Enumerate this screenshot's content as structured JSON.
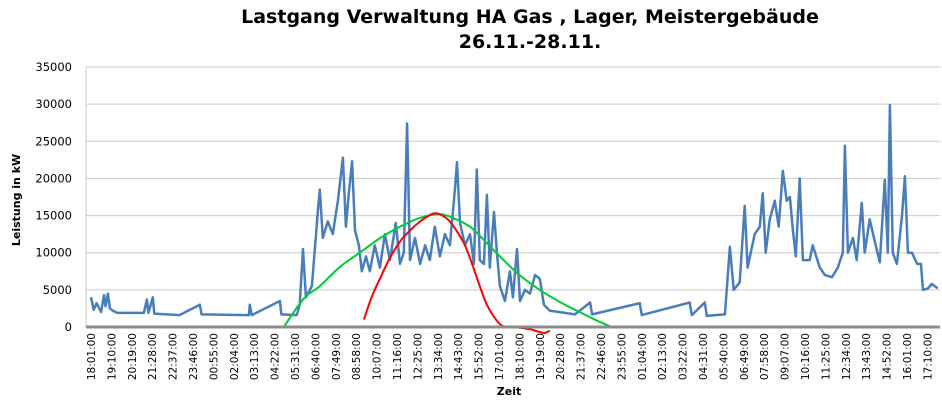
{
  "chart_data": {
    "type": "line",
    "title": "Lastgang Verwaltung HA Gas , Lager, Meistergebäude",
    "subtitle": "26.11.-28.11.",
    "xlabel": "Zeit",
    "ylabel": "Leistung in kW",
    "ylim": [
      0,
      35000
    ],
    "yticks": [
      0,
      5000,
      10000,
      15000,
      20000,
      25000,
      30000,
      35000
    ],
    "grid": true,
    "legend": "none",
    "xtick_labels": [
      "18:01:00",
      "19:10:00",
      "20:19:00",
      "21:28:00",
      "22:37:00",
      "23:46:00",
      "00:55:00",
      "02:04:00",
      "03:13:00",
      "04:22:00",
      "05:31:00",
      "06:40:00",
      "07:49:00",
      "08:58:00",
      "10:07:00",
      "11:16:00",
      "12:25:00",
      "13:34:00",
      "14:43:00",
      "15:52:00",
      "17:01:00",
      "18:10:00",
      "19:19:00",
      "20:28:00",
      "21:37:00",
      "22:46:00",
      "23:55:00",
      "01:04:00",
      "02:13:00",
      "03:22:00",
      "04:31:00",
      "05:40:00",
      "06:49:00",
      "07:58:00",
      "09:07:00",
      "10:16:00",
      "11:25:00",
      "12:34:00",
      "13:43:00",
      "14:52:00",
      "16:01:00",
      "17:10:00"
    ],
    "series": [
      {
        "color": "#4a7ebb",
        "points": [
          [
            "26.11. 18:01",
            4000
          ],
          [
            "26.11. 18:10",
            2300
          ],
          [
            "26.11. 18:20",
            3200
          ],
          [
            "26.11. 18:35",
            2000
          ],
          [
            "26.11. 18:45",
            4300
          ],
          [
            "26.11. 18:50",
            2800
          ],
          [
            "26.11. 18:58",
            4500
          ],
          [
            "26.11. 19:05",
            2500
          ],
          [
            "26.11. 19:15",
            2200
          ],
          [
            "26.11. 19:30",
            1900
          ],
          [
            "26.11. 21:00",
            1900
          ],
          [
            "26.11. 21:10",
            3700
          ],
          [
            "26.11. 21:15",
            1900
          ],
          [
            "26.11. 21:30",
            4000
          ],
          [
            "26.11. 21:35",
            1800
          ],
          [
            "26.11. 23:00",
            1600
          ],
          [
            "27.11. 00:09",
            3000
          ],
          [
            "27.11. 00:15",
            1700
          ],
          [
            "27.11. 02:55",
            1600
          ],
          [
            "27.11. 02:58",
            3000
          ],
          [
            "27.11. 03:05",
            1600
          ],
          [
            "27.11. 04:40",
            3500
          ],
          [
            "27.11. 04:45",
            1700
          ],
          [
            "27.11. 05:37",
            1600
          ],
          [
            "27.11. 05:47",
            3000
          ],
          [
            "27.11. 05:58",
            10500
          ],
          [
            "27.11. 06:08",
            4000
          ],
          [
            "27.11. 06:28",
            5500
          ],
          [
            "27.11. 06:49",
            16000
          ],
          [
            "27.11. 06:55",
            18500
          ],
          [
            "27.11. 07:05",
            12000
          ],
          [
            "27.11. 07:22",
            14200
          ],
          [
            "27.11. 07:39",
            12500
          ],
          [
            "27.11. 07:56",
            17000
          ],
          [
            "27.11. 08:13",
            22800
          ],
          [
            "27.11. 08:23",
            13500
          ],
          [
            "27.11. 08:33",
            18000
          ],
          [
            "27.11. 08:44",
            22300
          ],
          [
            "27.11. 08:54",
            13000
          ],
          [
            "27.11. 09:07",
            11000
          ],
          [
            "27.11. 09:17",
            7500
          ],
          [
            "27.11. 09:31",
            9500
          ],
          [
            "27.11. 09:44",
            7500
          ],
          [
            "27.11. 10:01",
            11000
          ],
          [
            "27.11. 10:18",
            8000
          ],
          [
            "27.11. 10:35",
            12500
          ],
          [
            "27.11. 10:52",
            9000
          ],
          [
            "27.11. 11:12",
            14000
          ],
          [
            "27.11. 11:26",
            8500
          ],
          [
            "27.11. 11:39",
            10000
          ],
          [
            "27.11. 11:50",
            27400
          ],
          [
            "27.11. 12:00",
            9000
          ],
          [
            "27.11. 12:17",
            12000
          ],
          [
            "27.11. 12:34",
            8500
          ],
          [
            "27.11. 12:51",
            11000
          ],
          [
            "27.11. 13:07",
            9000
          ],
          [
            "27.11. 13:24",
            13500
          ],
          [
            "27.11. 13:41",
            9500
          ],
          [
            "27.11. 13:58",
            12500
          ],
          [
            "27.11. 14:15",
            11000
          ],
          [
            "27.11. 14:32",
            18500
          ],
          [
            "27.11. 14:39",
            22200
          ],
          [
            "27.11. 14:49",
            14000
          ],
          [
            "27.11. 15:06",
            11000
          ],
          [
            "27.11. 15:23",
            12500
          ],
          [
            "27.11. 15:36",
            8500
          ],
          [
            "27.11. 15:46",
            21200
          ],
          [
            "27.11. 15:56",
            9000
          ],
          [
            "27.11. 16:10",
            8500
          ],
          [
            "27.11. 16:20",
            17800
          ],
          [
            "27.11. 16:30",
            8000
          ],
          [
            "27.11. 16:44",
            15500
          ],
          [
            "27.11. 16:54",
            10000
          ],
          [
            "27.11. 17:04",
            5500
          ],
          [
            "27.11. 17:21",
            3500
          ],
          [
            "27.11. 17:38",
            7500
          ],
          [
            "27.11. 17:48",
            4000
          ],
          [
            "27.11. 18:02",
            10500
          ],
          [
            "27.11. 18:12",
            3500
          ],
          [
            "27.11. 18:29",
            5000
          ],
          [
            "27.11. 18:46",
            4500
          ],
          [
            "27.11. 19:03",
            7000
          ],
          [
            "27.11. 19:19",
            6500
          ],
          [
            "27.11. 19:33",
            3000
          ],
          [
            "27.11. 19:53",
            2200
          ],
          [
            "27.11. 20:27",
            2000
          ],
          [
            "27.11. 21:18",
            1700
          ],
          [
            "27.11. 22:09",
            3300
          ],
          [
            "27.11. 22:16",
            1700
          ],
          [
            "28.11. 00:57",
            3200
          ],
          [
            "28.11. 01:04",
            1600
          ],
          [
            "28.11. 03:46",
            3300
          ],
          [
            "28.11. 03:53",
            1600
          ],
          [
            "28.11. 04:37",
            3300
          ],
          [
            "28.11. 04:44",
            1500
          ],
          [
            "28.11. 05:45",
            1700
          ],
          [
            "28.11. 06:02",
            10800
          ],
          [
            "28.11. 06:15",
            5000
          ],
          [
            "28.11. 06:35",
            6000
          ],
          [
            "28.11. 06:52",
            16300
          ],
          [
            "28.11. 07:02",
            8000
          ],
          [
            "28.11. 07:26",
            12500
          ],
          [
            "28.11. 07:43",
            13500
          ],
          [
            "28.11. 07:53",
            18000
          ],
          [
            "28.11. 08:03",
            10000
          ],
          [
            "28.11. 08:17",
            14500
          ],
          [
            "28.11. 08:34",
            17000
          ],
          [
            "28.11. 08:47",
            13500
          ],
          [
            "28.11. 09:01",
            21000
          ],
          [
            "28.11. 09:14",
            17000
          ],
          [
            "28.11. 09:25",
            17500
          ],
          [
            "28.11. 09:35",
            13000
          ],
          [
            "28.11. 09:45",
            9500
          ],
          [
            "28.11. 09:58",
            20000
          ],
          [
            "28.11. 10:09",
            9000
          ],
          [
            "28.11. 10:32",
            9000
          ],
          [
            "28.11. 10:42",
            11000
          ],
          [
            "28.11. 11:06",
            8000
          ],
          [
            "28.11. 11:23",
            7000
          ],
          [
            "28.11. 11:47",
            6700
          ],
          [
            "28.11. 12:07",
            8000
          ],
          [
            "28.11. 12:24",
            10000
          ],
          [
            "28.11. 12:31",
            24400
          ],
          [
            "28.11. 12:41",
            10000
          ],
          [
            "28.11. 12:58",
            12000
          ],
          [
            "28.11. 13:11",
            9000
          ],
          [
            "28.11. 13:28",
            16700
          ],
          [
            "28.11. 13:38",
            10000
          ],
          [
            "28.11. 13:55",
            14500
          ],
          [
            "28.11. 14:12",
            11500
          ],
          [
            "28.11. 14:29",
            8700
          ],
          [
            "28.11. 14:46",
            19800
          ],
          [
            "28.11. 14:56",
            10000
          ],
          [
            "28.11. 15:03",
            29900
          ],
          [
            "28.11. 15:13",
            10000
          ],
          [
            "28.11. 15:27",
            8500
          ],
          [
            "28.11. 15:44",
            15000
          ],
          [
            "28.11. 15:54",
            20300
          ],
          [
            "28.11. 16:04",
            10000
          ],
          [
            "28.11. 16:18",
            10000
          ],
          [
            "28.11. 16:35",
            8500
          ],
          [
            "28.11. 16:48",
            8500
          ],
          [
            "28.11. 16:55",
            5000
          ],
          [
            "28.11. 17:12",
            5200
          ],
          [
            "28.11. 17:25",
            5800
          ],
          [
            "28.11. 17:45",
            5200
          ]
        ]
      },
      {
        "color": "#00cc33",
        "points": [
          [
            "27.11. 04:53",
            0
          ],
          [
            "27.11. 06:00",
            3800
          ],
          [
            "27.11. 06:55",
            5500
          ],
          [
            "27.11. 08:00",
            8000
          ],
          [
            "27.11. 09:10",
            10000
          ],
          [
            "27.11. 10:20",
            12000
          ],
          [
            "27.11. 11:26",
            13500
          ],
          [
            "27.11. 12:34",
            14700
          ],
          [
            "27.11. 13:41",
            15200
          ],
          [
            "27.11. 14:30",
            14600
          ],
          [
            "27.11. 15:23",
            13500
          ],
          [
            "27.11. 16:15",
            11500
          ],
          [
            "27.11. 17:04",
            9500
          ],
          [
            "27.11. 18:10",
            7000
          ],
          [
            "27.11. 19:19",
            5000
          ],
          [
            "27.11. 20:30",
            3300
          ],
          [
            "27.11. 21:34",
            2000
          ],
          [
            "27.11. 22:30",
            900
          ],
          [
            "27.11. 23:23",
            0
          ]
        ]
      },
      {
        "color": "#ff0000",
        "points": [
          [
            "27.11. 09:24",
            1000
          ],
          [
            "27.11. 09:50",
            4000
          ],
          [
            "27.11. 10:18",
            6500
          ],
          [
            "27.11. 10:52",
            9300
          ],
          [
            "27.11. 11:26",
            11500
          ],
          [
            "27.11. 12:00",
            13000
          ],
          [
            "27.11. 12:34",
            14200
          ],
          [
            "27.11. 13:00",
            14900
          ],
          [
            "27.11. 13:24",
            15300
          ],
          [
            "27.11. 13:50",
            15000
          ],
          [
            "27.11. 14:15",
            14200
          ],
          [
            "27.11. 14:40",
            12800
          ],
          [
            "27.11. 15:06",
            11000
          ],
          [
            "27.11. 15:30",
            8500
          ],
          [
            "27.11. 15:56",
            5500
          ],
          [
            "27.11. 16:20",
            3000
          ],
          [
            "27.11. 16:47",
            1200
          ],
          [
            "27.11. 17:10",
            200
          ],
          [
            "27.11. 17:31",
            0
          ],
          [
            "27.11. 18:12",
            -100
          ],
          [
            "27.11. 18:46",
            -300
          ],
          [
            "27.11. 19:20",
            -700
          ],
          [
            "27.11. 19:36",
            -800
          ],
          [
            "27.11. 19:53",
            -500
          ]
        ]
      }
    ]
  }
}
